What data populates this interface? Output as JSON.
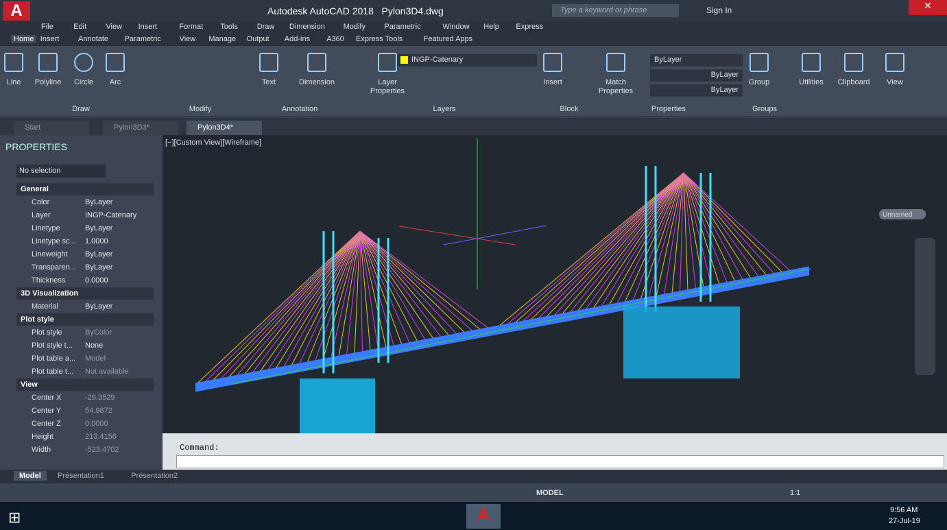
{
  "title_bar": {
    "title": "Autodesk AutoCAD 2018   Pylon3D4.dwg",
    "search_placeholder": "Type a keyword or phrase",
    "sign_in": "Sign In"
  },
  "menu_bar": [
    "File",
    "Edit",
    "View",
    "Insert",
    "Format",
    "Tools",
    "Draw",
    "Dimension",
    "Modify",
    "Parametric",
    "Window",
    "Help",
    "Express"
  ],
  "ribbon_tabs": [
    "Home",
    "Insert",
    "Annotate",
    "Parametric",
    "View",
    "Manage",
    "Output",
    "Add-ins",
    "A360",
    "Express Tools",
    "Featured Apps"
  ],
  "ribbon_tools": [
    "Line",
    "Polyline",
    "Circle",
    "Arc",
    "Text",
    "Dimension",
    "Layer Properties",
    "Insert",
    "Match Properties",
    "Group",
    "Utilities",
    "Clipboard",
    "View"
  ],
  "ribbon_panels": [
    "Draw",
    "Modify",
    "Annotation",
    "Layers",
    "Block",
    "Properties",
    "Groups"
  ],
  "layer": "INGP-Catenary",
  "property_dropdowns": [
    "ByLayer",
    "ByLayer",
    "ByLayer"
  ],
  "document_tabs": [
    "Start",
    "Pylon3D3*",
    "Pylon3D4*"
  ],
  "properties_palette": {
    "title": "PROPERTIES",
    "selection": "No selection",
    "sections": [
      {
        "name": "General",
        "rows": [
          [
            "Color",
            "ByLayer"
          ],
          [
            "Layer",
            "INGP-Catenary"
          ],
          [
            "Linetype",
            "ByLayer"
          ],
          [
            "Linetype sc...",
            "1.0000"
          ],
          [
            "Lineweight",
            "ByLayer"
          ],
          [
            "Transparen...",
            "ByLayer"
          ],
          [
            "Thickness",
            "0.0000"
          ]
        ]
      },
      {
        "name": "3D Visualization",
        "rows": [
          [
            "Material",
            "ByLayer"
          ]
        ]
      },
      {
        "name": "Plot style",
        "rows": [
          [
            "Plot style",
            "ByColor"
          ],
          [
            "Plot style t...",
            "None"
          ],
          [
            "Plot table a...",
            "Model"
          ],
          [
            "Plot table t...",
            "Not available"
          ]
        ]
      },
      {
        "name": "View",
        "rows": [
          [
            "Center X",
            "-29.3529"
          ],
          [
            "Center Y",
            "54.9872"
          ],
          [
            "Center Z",
            "0.0000"
          ],
          [
            "Height",
            "213.4156"
          ],
          [
            "Width",
            "-523.4702"
          ]
        ]
      }
    ]
  },
  "viewport": {
    "label": "[−][Custom View][Wireframe]",
    "view_name": "Unnamed"
  },
  "command_line": {
    "history": "Command:"
  },
  "layout_tabs": [
    "Model",
    "Présentation1",
    "Présentation2"
  ],
  "status_bar": {
    "model": "MODEL",
    "scale": "1:1"
  },
  "taskbar": {
    "time": "9:56 AM",
    "date": "27-Jul-19"
  }
}
